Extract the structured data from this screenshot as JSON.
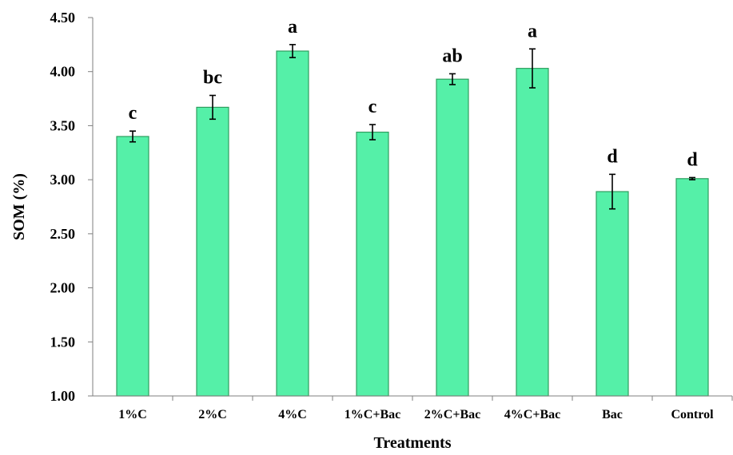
{
  "chart_data": {
    "type": "bar",
    "categories": [
      "1%C",
      "2%C",
      "4%C",
      "1%C+Bac",
      "2%C+Bac",
      "4%C+Bac",
      "Bac",
      "Control"
    ],
    "values": [
      3.4,
      3.67,
      4.19,
      3.44,
      3.93,
      4.03,
      2.89,
      3.01
    ],
    "errors": [
      0.05,
      0.11,
      0.06,
      0.07,
      0.05,
      0.18,
      0.16,
      0.01
    ],
    "letters": [
      "c",
      "bc",
      "a",
      "c",
      "ab",
      "a",
      "d",
      "d"
    ],
    "ylim": [
      1.0,
      4.5
    ],
    "yticks": [
      "1.00",
      "1.50",
      "2.00",
      "2.50",
      "3.00",
      "3.50",
      "4.00",
      "4.50"
    ],
    "xlabel": "Treatments",
    "ylabel": "SOM (%)",
    "title": "",
    "grid": false,
    "colors": {
      "bar_fill": "#55F0A8",
      "bar_stroke": "#2E9E5E",
      "axis": "#7F7F7F",
      "error": "#000000"
    }
  }
}
